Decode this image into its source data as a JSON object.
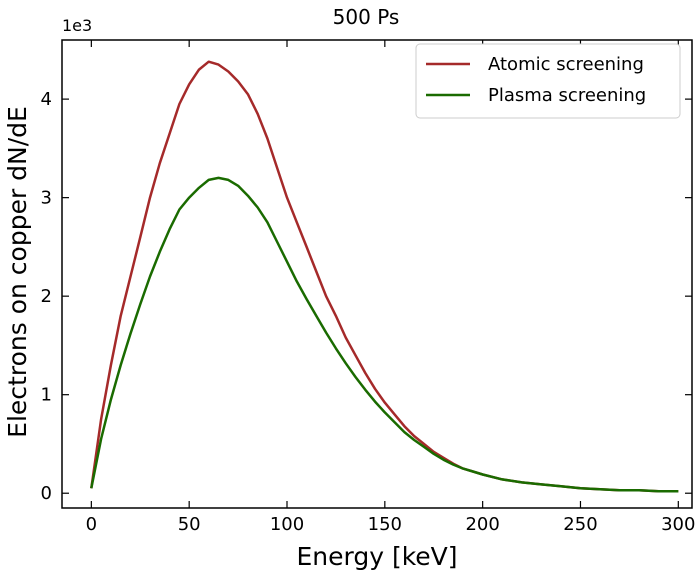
{
  "chart_data": {
    "type": "line",
    "title": "500 Ps",
    "xlabel": "Energy [keV]",
    "ylabel": "Electrons on copper dN/dE",
    "y_offset_label": "1e3",
    "xlim": [
      -15,
      307
    ],
    "ylim": [
      -0.15,
      4.6
    ],
    "x_ticks": [
      0,
      50,
      100,
      150,
      200,
      250,
      300
    ],
    "x_tick_labels": [
      "0",
      "50",
      "100",
      "150",
      "200",
      "250",
      "300"
    ],
    "y_ticks": [
      0,
      1,
      2,
      3,
      4
    ],
    "y_tick_labels": [
      "0",
      "1",
      "2",
      "3",
      "4"
    ],
    "grid": false,
    "legend_position": "top-right",
    "series": [
      {
        "name": "Atomic screening",
        "color": "#a52a2a",
        "x": [
          0,
          5,
          10,
          15,
          20,
          25,
          30,
          35,
          40,
          45,
          50,
          55,
          60,
          65,
          70,
          75,
          80,
          85,
          90,
          95,
          100,
          105,
          110,
          115,
          120,
          125,
          130,
          135,
          140,
          145,
          150,
          155,
          160,
          165,
          170,
          175,
          180,
          185,
          190,
          195,
          200,
          210,
          220,
          230,
          240,
          250,
          260,
          270,
          280,
          290,
          300
        ],
        "values": [
          0.05,
          0.75,
          1.3,
          1.8,
          2.2,
          2.6,
          3.0,
          3.35,
          3.65,
          3.95,
          4.15,
          4.3,
          4.38,
          4.35,
          4.28,
          4.18,
          4.05,
          3.85,
          3.6,
          3.3,
          3.0,
          2.75,
          2.5,
          2.25,
          2.0,
          1.8,
          1.58,
          1.4,
          1.22,
          1.06,
          0.92,
          0.8,
          0.68,
          0.58,
          0.5,
          0.42,
          0.36,
          0.3,
          0.25,
          0.22,
          0.19,
          0.14,
          0.11,
          0.09,
          0.07,
          0.05,
          0.04,
          0.03,
          0.03,
          0.02,
          0.02
        ]
      },
      {
        "name": "Plasma screening",
        "color": "#1a6b00",
        "x": [
          0,
          5,
          10,
          15,
          20,
          25,
          30,
          35,
          40,
          45,
          50,
          55,
          60,
          65,
          70,
          75,
          80,
          85,
          90,
          95,
          100,
          105,
          110,
          115,
          120,
          125,
          130,
          135,
          140,
          145,
          150,
          155,
          160,
          165,
          170,
          175,
          180,
          185,
          190,
          195,
          200,
          210,
          220,
          230,
          240,
          250,
          260,
          270,
          280,
          290,
          300
        ],
        "values": [
          0.05,
          0.55,
          0.95,
          1.3,
          1.62,
          1.92,
          2.2,
          2.45,
          2.68,
          2.88,
          3.0,
          3.1,
          3.18,
          3.2,
          3.18,
          3.12,
          3.02,
          2.9,
          2.75,
          2.55,
          2.35,
          2.15,
          1.97,
          1.8,
          1.63,
          1.47,
          1.32,
          1.18,
          1.05,
          0.93,
          0.82,
          0.72,
          0.62,
          0.54,
          0.47,
          0.4,
          0.34,
          0.29,
          0.25,
          0.22,
          0.19,
          0.14,
          0.11,
          0.09,
          0.07,
          0.05,
          0.04,
          0.03,
          0.03,
          0.02,
          0.02
        ]
      }
    ]
  }
}
